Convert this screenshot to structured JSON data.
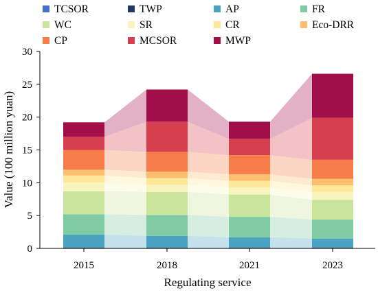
{
  "chart_data": {
    "type": "bar",
    "stacked": true,
    "connector_bands": true,
    "title": "",
    "xlabel": "Regulating service",
    "ylabel": "Value (100 million yuan)",
    "ylim": [
      0,
      30
    ],
    "yticks": [
      0,
      5,
      10,
      15,
      20,
      25,
      30
    ],
    "grid": false,
    "legend_position": "top",
    "categories": [
      "2015",
      "2018",
      "2021",
      "2023"
    ],
    "series": [
      {
        "name": "TCSOR",
        "color": "#4472C4",
        "values": [
          0.05,
          0.05,
          0.05,
          0.05
        ]
      },
      {
        "name": "TWP",
        "color": "#1F3864",
        "values": [
          0.05,
          0.05,
          0.05,
          0.05
        ]
      },
      {
        "name": "AP",
        "color": "#4AA3C0",
        "values": [
          2.0,
          1.8,
          1.6,
          1.4
        ]
      },
      {
        "name": "FR",
        "color": "#7FCBA4",
        "values": [
          3.1,
          3.2,
          3.1,
          2.9
        ]
      },
      {
        "name": "WC",
        "color": "#C9E49B",
        "values": [
          3.5,
          3.5,
          3.4,
          3.0
        ]
      },
      {
        "name": "SR",
        "color": "#F7F5BD",
        "values": [
          1.3,
          1.1,
          1.1,
          1.2
        ]
      },
      {
        "name": "CR",
        "color": "#FEE797",
        "values": [
          1.1,
          1.0,
          1.0,
          1.0
        ]
      },
      {
        "name": "Eco-DRR",
        "color": "#FDBE6E",
        "values": [
          0.9,
          1.0,
          1.0,
          1.0
        ]
      },
      {
        "name": "CP",
        "color": "#F67D4A",
        "values": [
          3.0,
          3.0,
          2.9,
          2.9
        ]
      },
      {
        "name": "MCSOR",
        "color": "#D6404E",
        "values": [
          2.0,
          4.6,
          2.5,
          6.4
        ]
      },
      {
        "name": "MWP",
        "color": "#A20E4A",
        "values": [
          2.2,
          4.9,
          2.6,
          6.7
        ]
      }
    ]
  }
}
